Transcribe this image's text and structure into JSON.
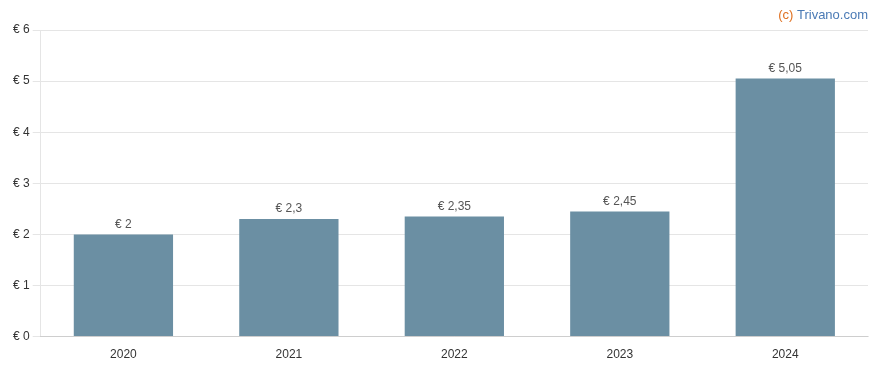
{
  "chart_data": {
    "type": "bar",
    "categories": [
      "2020",
      "2021",
      "2022",
      "2023",
      "2024"
    ],
    "values": [
      2.0,
      2.3,
      2.35,
      2.45,
      5.05
    ],
    "value_labels": [
      "€ 2",
      "€ 2,3",
      "€ 2,35",
      "€ 2,45",
      "€ 5,05"
    ],
    "data_labels": true,
    "color": "#6b8fa3",
    "ylim": [
      0,
      6.0
    ],
    "yticks": [
      {
        "value": 0,
        "label": "€ 0"
      },
      {
        "value": 1,
        "label": "€ 1"
      },
      {
        "value": 2,
        "label": "€ 2"
      },
      {
        "value": 3,
        "label": "€ 3"
      },
      {
        "value": 4,
        "label": "€ 4"
      },
      {
        "value": 5,
        "label": "€ 5"
      },
      {
        "value": 6,
        "label": "€ 6"
      }
    ],
    "grid": true,
    "annotations": [
      {
        "text": "(c) ",
        "color": "#e07020"
      },
      {
        "text": "Trivano.com",
        "color": "#4a7ab5"
      }
    ]
  }
}
